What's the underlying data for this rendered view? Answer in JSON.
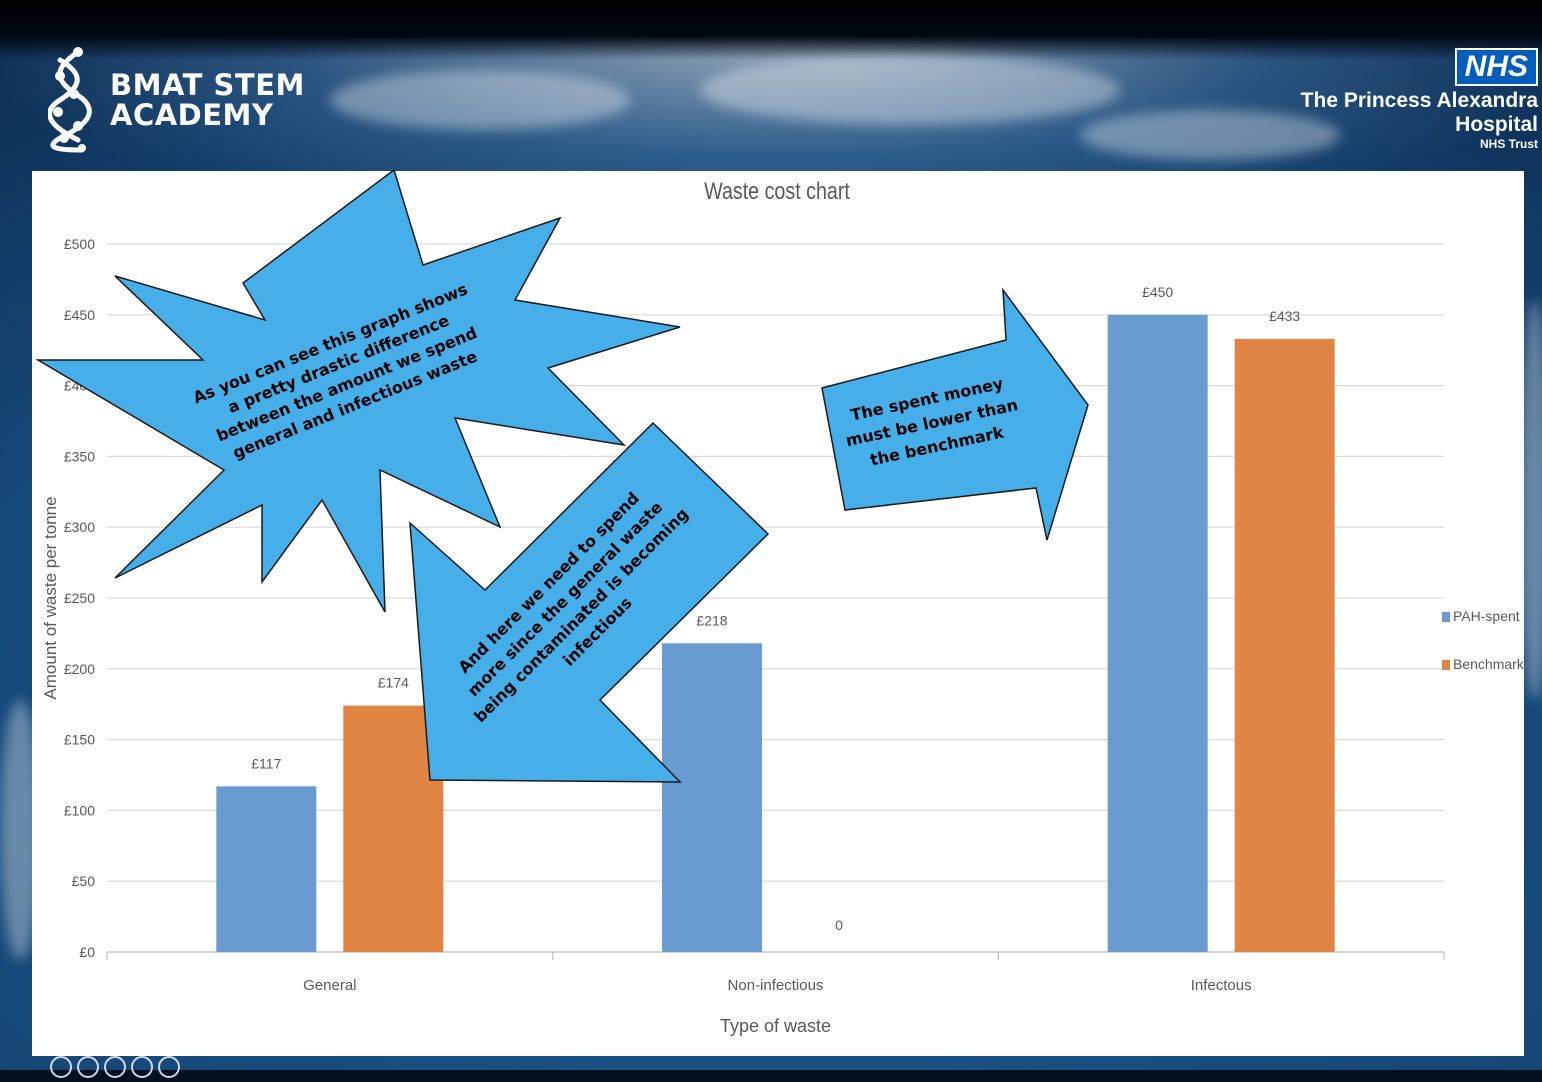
{
  "branding": {
    "academy_line1": "BMAT STEM",
    "academy_line2": "ACADEMY",
    "nhs_badge": "NHS",
    "trust_line1": "The Princess Alexandra",
    "trust_line2": "Hospital",
    "trust_line3": "NHS Trust"
  },
  "chart_data": {
    "type": "bar",
    "title": "Waste cost chart",
    "xlabel": "Type of waste",
    "ylabel": "Amount of waste per tonne",
    "categories": [
      "General",
      "Non-infectious",
      "Infectous"
    ],
    "series": [
      {
        "name": "PAH-spent",
        "values": [
          117,
          218,
          450
        ],
        "labels": [
          "£117",
          "£218",
          "£450"
        ],
        "color": "#6a9bd0"
      },
      {
        "name": "Benchmark",
        "values": [
          174,
          0,
          433
        ],
        "labels": [
          "£174",
          "0",
          "£433"
        ],
        "color": "#e08443"
      }
    ],
    "ylim": [
      0,
      500
    ],
    "yticks": [
      0,
      50,
      100,
      150,
      200,
      250,
      300,
      350,
      400,
      450,
      500
    ],
    "ytick_labels": [
      "£0",
      "£50",
      "£100",
      "£150",
      "£200",
      "£250",
      "£300",
      "£350",
      "£400",
      "£450",
      "£500"
    ],
    "grid": true,
    "legend_position": "right"
  },
  "annotations": {
    "starburst": [
      "As you can see this graph shows",
      "a pretty drastic difference",
      "between the amount we spend",
      "general and infectious waste"
    ],
    "arrow_down": [
      "And here we need to spend",
      "more since the general waste",
      "being contaminated is becoming",
      "infectious"
    ],
    "arrow_right": [
      "The spent money",
      "must be lower than",
      "the benchmark"
    ],
    "callout_fill": "#46aee8"
  }
}
